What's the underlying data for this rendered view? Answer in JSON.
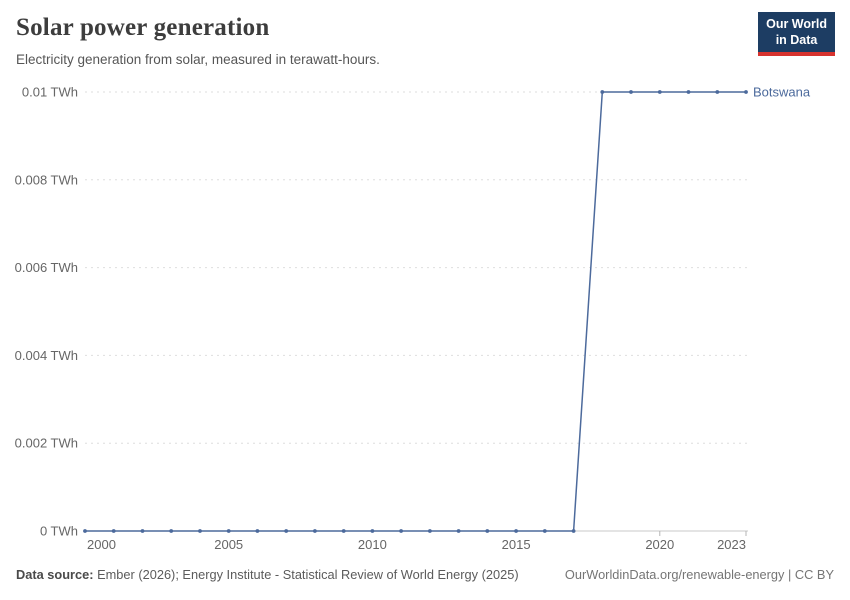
{
  "header": {
    "title": "Solar power generation",
    "subtitle": "Electricity generation from solar, measured in terawatt-hours.",
    "logo": {
      "line1": "Our World",
      "line2": "in Data",
      "bg_color": "#1d3d63",
      "accent_color": "#d7332e"
    }
  },
  "chart_data": {
    "type": "line",
    "title": "Solar power generation",
    "unit": "TWh",
    "xlim": [
      2000,
      2023
    ],
    "ylim": [
      0,
      0.01
    ],
    "grid": "horizontal-dashed",
    "legend_position": "end-of-line-label",
    "x_ticks": [
      2000,
      2005,
      2010,
      2015,
      2020,
      2023
    ],
    "x_tick_marks": [
      2020,
      2023
    ],
    "y_ticks": [
      0,
      0.002,
      0.004,
      0.006,
      0.008,
      0.01
    ],
    "y_tick_labels": [
      "0 TWh",
      "0.002 TWh",
      "0.004 TWh",
      "0.006 TWh",
      "0.008 TWh",
      "0.01 TWh"
    ],
    "series": [
      {
        "name": "Botswana",
        "color": "#4c6a9c",
        "x": [
          2000,
          2001,
          2002,
          2003,
          2004,
          2005,
          2006,
          2007,
          2008,
          2009,
          2010,
          2011,
          2012,
          2013,
          2014,
          2015,
          2016,
          2017,
          2018,
          2019,
          2020,
          2021,
          2022,
          2023
        ],
        "values": [
          0,
          0,
          0,
          0,
          0,
          0,
          0,
          0,
          0,
          0,
          0,
          0,
          0,
          0,
          0,
          0,
          0,
          0,
          0.01,
          0.01,
          0.01,
          0.01,
          0.01,
          0.01
        ]
      }
    ]
  },
  "footer": {
    "source_label": "Data source:",
    "source_text": " Ember (2026); Energy Institute - Statistical Review of World Energy (2025)",
    "link_text": "OurWorldinData.org/renewable-energy | CC BY"
  },
  "colors": {
    "grid": "#dedede",
    "axis": "#c9c9c9",
    "tick_mark": "#b5b5b5",
    "tick_text": "#666666"
  }
}
